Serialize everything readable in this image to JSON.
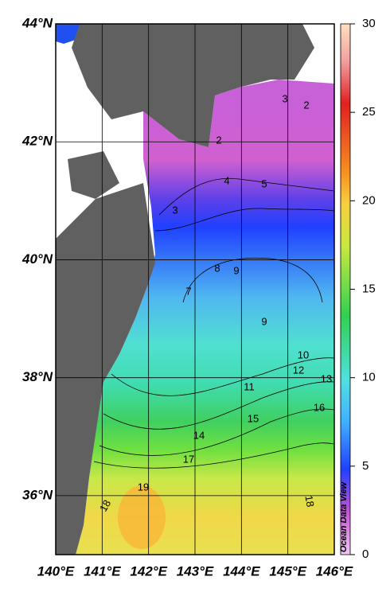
{
  "map": {
    "xticks": [
      {
        "value": 140,
        "label": "140°E"
      },
      {
        "value": 141,
        "label": "141°E"
      },
      {
        "value": 142,
        "label": "142°E"
      },
      {
        "value": 143,
        "label": "143°E"
      },
      {
        "value": 144,
        "label": "144°E"
      },
      {
        "value": 145,
        "label": "145°E"
      },
      {
        "value": 146,
        "label": "146°E"
      }
    ],
    "yticks": [
      {
        "value": 36,
        "label": "36°N"
      },
      {
        "value": 38,
        "label": "38°N"
      },
      {
        "value": 40,
        "label": "40°N"
      },
      {
        "value": 42,
        "label": "42°N"
      },
      {
        "value": 44,
        "label": "44°N"
      }
    ],
    "xlim": [
      140,
      146
    ],
    "ylim": [
      35,
      44
    ],
    "colorbar": {
      "lim": [
        0,
        30
      ],
      "ticks": [
        0,
        5,
        10,
        15,
        20,
        25,
        30
      ]
    },
    "contour_labels": [
      3,
      2,
      2,
      4,
      5,
      3,
      8,
      9,
      7,
      9,
      10,
      12,
      13,
      11,
      16,
      15,
      14,
      17,
      19,
      18,
      18
    ],
    "watermark": "Ocean Data View"
  }
}
